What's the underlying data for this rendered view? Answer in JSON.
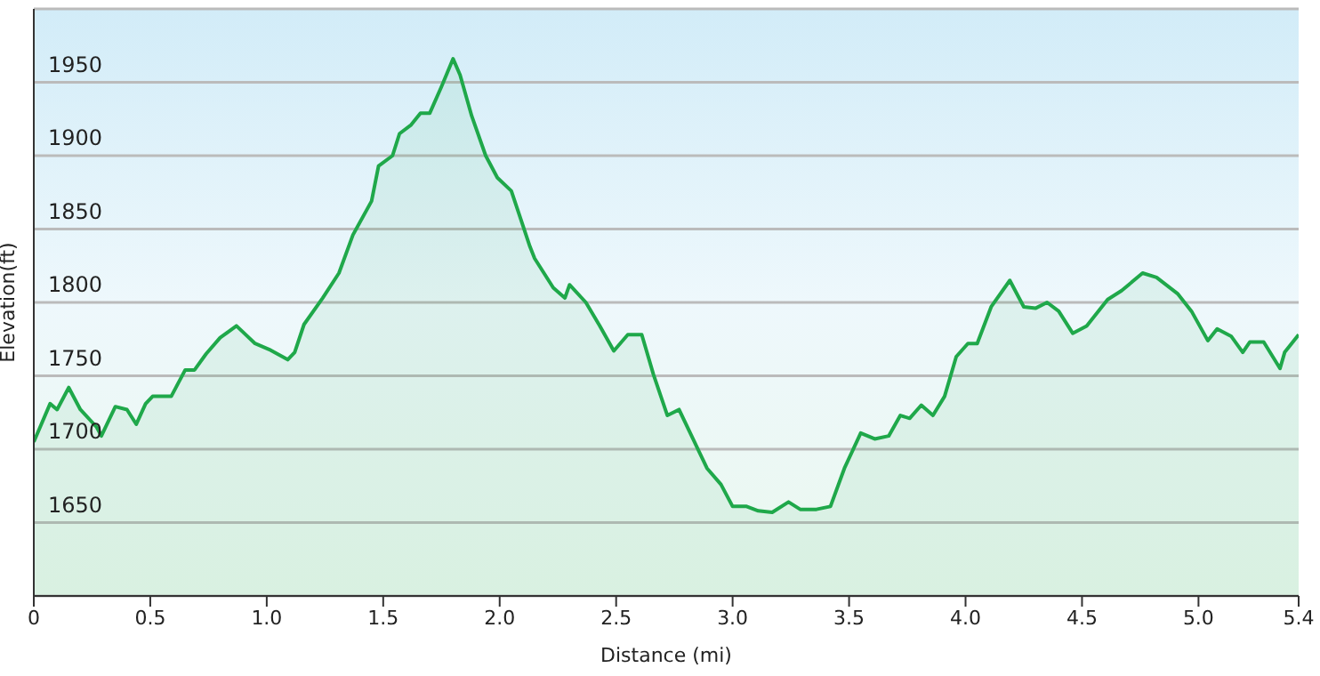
{
  "chart_data": {
    "type": "area",
    "xlabel": "Distance (mi)",
    "ylabel": "Elevation(ft)",
    "x": [
      0.0,
      0.07,
      0.1,
      0.15,
      0.2,
      0.27,
      0.29,
      0.35,
      0.4,
      0.44,
      0.48,
      0.51,
      0.59,
      0.65,
      0.69,
      0.74,
      0.8,
      0.87,
      0.95,
      1.01,
      1.09,
      1.12,
      1.16,
      1.24,
      1.31,
      1.37,
      1.45,
      1.48,
      1.54,
      1.57,
      1.62,
      1.66,
      1.7,
      1.75,
      1.8,
      1.83,
      1.88,
      1.94,
      1.99,
      2.05,
      2.13,
      2.15,
      2.23,
      2.28,
      2.3,
      2.37,
      2.43,
      2.49,
      2.55,
      2.61,
      2.66,
      2.72,
      2.77,
      2.83,
      2.89,
      2.95,
      3.0,
      3.06,
      3.11,
      3.17,
      3.24,
      3.29,
      3.36,
      3.42,
      3.48,
      3.55,
      3.61,
      3.67,
      3.72,
      3.76,
      3.81,
      3.86,
      3.91,
      3.96,
      4.01,
      4.05,
      4.11,
      4.19,
      4.25,
      4.3,
      4.35,
      4.4,
      4.46,
      4.52,
      4.61,
      4.67,
      4.76,
      4.82,
      4.91,
      4.97,
      5.04,
      5.08,
      5.14,
      5.19,
      5.22,
      5.28,
      5.35,
      5.37,
      5.43
    ],
    "series": [
      {
        "color": "#1fa84a",
        "values": [
          1705,
          1731,
          1727,
          1742,
          1727,
          1715,
          1709,
          1729,
          1727,
          1717,
          1731,
          1736,
          1736,
          1754,
          1754,
          1765,
          1776,
          1784,
          1772,
          1768,
          1761,
          1766,
          1785,
          1803,
          1820,
          1846,
          1869,
          1893,
          1900,
          1915,
          1921,
          1929,
          1929,
          1947,
          1966,
          1955,
          1927,
          1900,
          1885,
          1876,
          1838,
          1830,
          1810,
          1803,
          1812,
          1800,
          1784,
          1767,
          1778,
          1778,
          1751,
          1723,
          1727,
          1707,
          1687,
          1676,
          1661,
          1661,
          1658,
          1657,
          1664,
          1659,
          1659,
          1661,
          1687,
          1711,
          1707,
          1709,
          1723,
          1721,
          1730,
          1723,
          1736,
          1763,
          1772,
          1772,
          1797,
          1815,
          1797,
          1796,
          1800,
          1794,
          1779,
          1784,
          1802,
          1808,
          1820,
          1817,
          1806,
          1794,
          1774,
          1782,
          1777,
          1766,
          1773,
          1773,
          1755,
          1766,
          1778
        ]
      }
    ],
    "xlim": [
      0,
      5.43
    ],
    "xticks": [
      0,
      {
        "value": 0.5,
        "label": "0.5"
      },
      {
        "value": 1,
        "label": "1.0"
      },
      {
        "value": 1.5,
        "label": "1.5"
      },
      {
        "value": 2,
        "label": "2.0"
      },
      {
        "value": 2.5,
        "label": "2.5"
      },
      {
        "value": 3,
        "label": "3.0"
      },
      {
        "value": 3.5,
        "label": "3.5"
      },
      {
        "value": 4,
        "label": "4.0"
      },
      {
        "value": 4.5,
        "label": "4.5"
      },
      {
        "value": 5,
        "label": "5.0"
      },
      {
        "value": 5.43,
        "label": "5.4"
      }
    ],
    "ylim": [
      1600,
      2000
    ],
    "yticks": [
      1650,
      1700,
      1750,
      1800,
      1850,
      1900,
      1950
    ],
    "grid": "y"
  }
}
